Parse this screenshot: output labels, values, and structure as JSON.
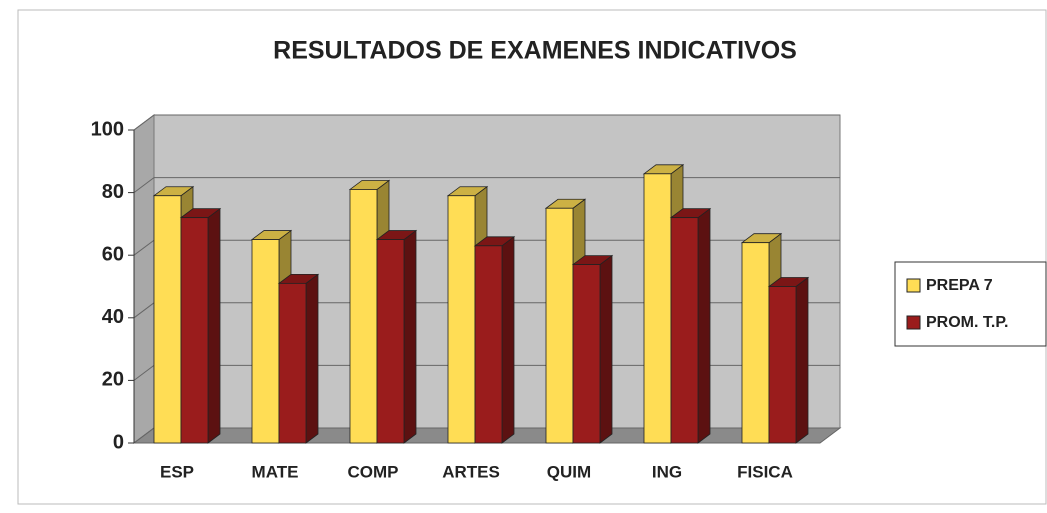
{
  "chart_data": {
    "type": "bar3d",
    "title": "RESULTADOS DE EXAMENES INDICATIVOS",
    "categories": [
      "ESP",
      "MATE",
      "COMP",
      "ARTES",
      "QUIM",
      "ING",
      "FISICA"
    ],
    "series": [
      {
        "name": "PREPA 7",
        "color": "#ffdd55",
        "values": [
          79,
          65,
          81,
          79,
          75,
          86,
          64
        ]
      },
      {
        "name": "PROM. T.P.",
        "color": "#9a1c1c",
        "values": [
          72,
          51,
          65,
          63,
          57,
          72,
          50
        ]
      }
    ],
    "ylim": [
      0,
      100
    ],
    "yticks": [
      0,
      20,
      40,
      60,
      80,
      100
    ],
    "grid": true,
    "legend": "right"
  }
}
